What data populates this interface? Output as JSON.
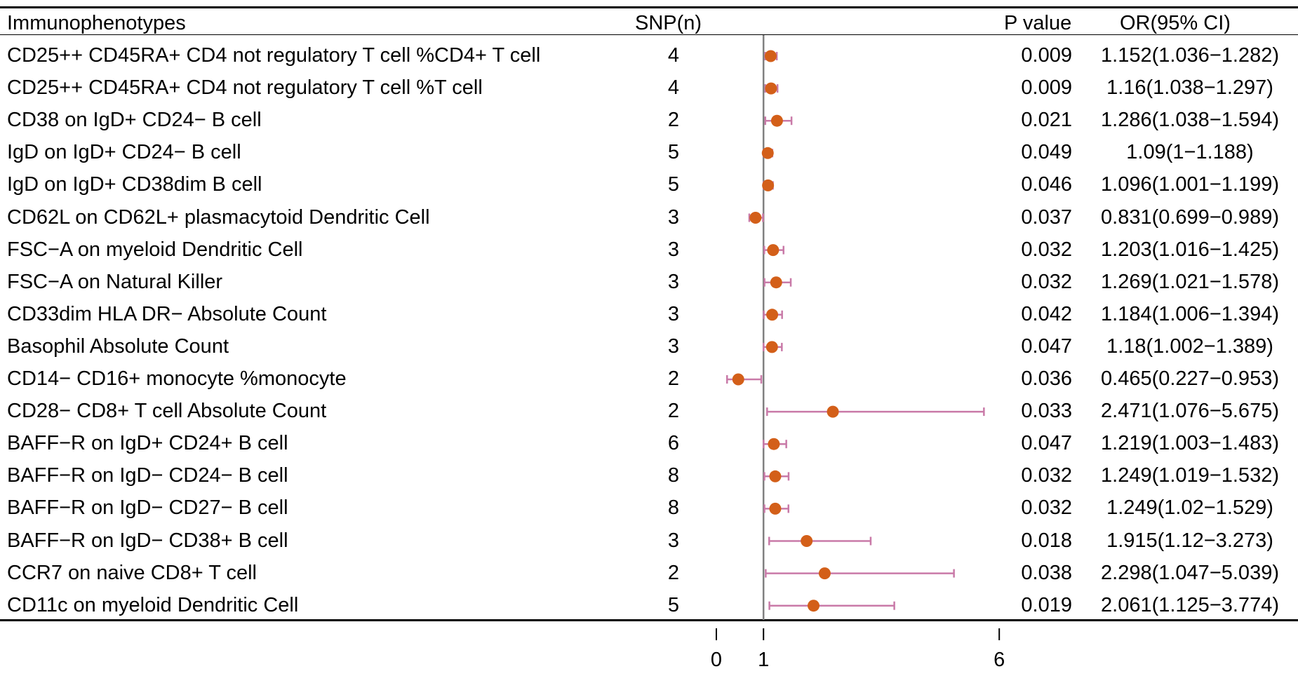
{
  "columns": {
    "name": "Immunophenotypes",
    "snp": "SNP(n)",
    "p": "P value",
    "or": "OR(95% CI)"
  },
  "axis": {
    "ticks": [
      0,
      1,
      6
    ],
    "tick_labels": [
      "0",
      "1",
      "6"
    ],
    "reference_line": 1
  },
  "colors": {
    "point": "#d35f19",
    "ci": "#c97aa8",
    "reference": "#808080"
  },
  "rows": [
    {
      "name": "CD25++ CD45RA+ CD4 not regulatory T cell %CD4+ T cell",
      "snp": "4",
      "p": "0.009",
      "or_text": "1.152(1.036−1.282)"
    },
    {
      "name": "CD25++ CD45RA+ CD4 not regulatory T cell %T cell",
      "snp": "4",
      "p": "0.009",
      "or_text": "1.16(1.038−1.297)"
    },
    {
      "name": "CD38 on IgD+ CD24− B cell",
      "snp": "2",
      "p": "0.021",
      "or_text": "1.286(1.038−1.594)"
    },
    {
      "name": "IgD on IgD+ CD24− B cell",
      "snp": "5",
      "p": "0.049",
      "or_text": "1.09(1−1.188)"
    },
    {
      "name": "IgD on IgD+ CD38dim B cell",
      "snp": "5",
      "p": "0.046",
      "or_text": "1.096(1.001−1.199)"
    },
    {
      "name": "CD62L on CD62L+ plasmacytoid Dendritic Cell",
      "snp": "3",
      "p": "0.037",
      "or_text": "0.831(0.699−0.989)"
    },
    {
      "name": "FSC−A on myeloid Dendritic Cell",
      "snp": "3",
      "p": "0.032",
      "or_text": "1.203(1.016−1.425)"
    },
    {
      "name": "FSC−A on Natural Killer",
      "snp": "3",
      "p": "0.032",
      "or_text": "1.269(1.021−1.578)"
    },
    {
      "name": "CD33dim HLA DR− Absolute Count",
      "snp": "3",
      "p": "0.042",
      "or_text": "1.184(1.006−1.394)"
    },
    {
      "name": "Basophil Absolute Count",
      "snp": "3",
      "p": "0.047",
      "or_text": "1.18(1.002−1.389)"
    },
    {
      "name": "CD14− CD16+ monocyte %monocyte",
      "snp": "2",
      "p": "0.036",
      "or_text": "0.465(0.227−0.953)"
    },
    {
      "name": "CD28− CD8+ T cell Absolute Count",
      "snp": "2",
      "p": "0.033",
      "or_text": "2.471(1.076−5.675)"
    },
    {
      "name": "BAFF−R on IgD+ CD24+ B cell",
      "snp": "6",
      "p": "0.047",
      "or_text": "1.219(1.003−1.483)"
    },
    {
      "name": "BAFF−R on IgD− CD24− B cell",
      "snp": "8",
      "p": "0.032",
      "or_text": "1.249(1.019−1.532)"
    },
    {
      "name": "BAFF−R on IgD− CD27− B cell",
      "snp": "8",
      "p": "0.032",
      "or_text": "1.249(1.02−1.529)"
    },
    {
      "name": "BAFF−R on IgD− CD38+ B cell",
      "snp": "3",
      "p": "0.018",
      "or_text": "1.915(1.12−3.273)"
    },
    {
      "name": "CCR7 on naive CD8+ T cell",
      "snp": "2",
      "p": "0.038",
      "or_text": "2.298(1.047−5.039)"
    },
    {
      "name": "CD11c on myeloid Dendritic Cell",
      "snp": "5",
      "p": "0.019",
      "or_text": "2.061(1.125−3.774)"
    }
  ],
  "chart_data": {
    "type": "forest",
    "title": "",
    "xlabel": "",
    "ylabel": "",
    "xlim": [
      0,
      6
    ],
    "reference_line": 1,
    "categories": [
      "CD25++ CD45RA+ CD4 not regulatory T cell %CD4+ T cell",
      "CD25++ CD45RA+ CD4 not regulatory T cell %T cell",
      "CD38 on IgD+ CD24− B cell",
      "IgD on IgD+ CD24− B cell",
      "IgD on IgD+ CD38dim B cell",
      "CD62L on CD62L+ plasmacytoid Dendritic Cell",
      "FSC−A on myeloid Dendritic Cell",
      "FSC−A on Natural Killer",
      "CD33dim HLA DR− Absolute Count",
      "Basophil Absolute Count",
      "CD14− CD16+ monocyte %monocyte",
      "CD28− CD8+ T cell Absolute Count",
      "BAFF−R on IgD+ CD24+ B cell",
      "BAFF−R on IgD− CD24− B cell",
      "BAFF−R on IgD− CD27− B cell",
      "BAFF−R on IgD− CD38+ B cell",
      "CCR7 on naive CD8+ T cell",
      "CD11c on myeloid Dendritic Cell"
    ],
    "or": [
      1.152,
      1.16,
      1.286,
      1.09,
      1.096,
      0.831,
      1.203,
      1.269,
      1.184,
      1.18,
      0.465,
      2.471,
      1.219,
      1.249,
      1.249,
      1.915,
      2.298,
      2.061
    ],
    "ci_low": [
      1.036,
      1.038,
      1.038,
      1,
      1.001,
      0.699,
      1.016,
      1.021,
      1.006,
      1.002,
      0.227,
      1.076,
      1.003,
      1.019,
      1.02,
      1.12,
      1.047,
      1.125
    ],
    "ci_high": [
      1.282,
      1.297,
      1.594,
      1.188,
      1.199,
      0.989,
      1.425,
      1.578,
      1.394,
      1.389,
      0.953,
      5.675,
      1.483,
      1.532,
      1.529,
      3.273,
      5.039,
      3.774
    ],
    "snp": [
      4,
      4,
      2,
      5,
      5,
      3,
      3,
      3,
      3,
      3,
      2,
      2,
      6,
      8,
      8,
      3,
      2,
      5
    ],
    "p_value": [
      0.009,
      0.009,
      0.021,
      0.049,
      0.046,
      0.037,
      0.032,
      0.032,
      0.042,
      0.047,
      0.036,
      0.033,
      0.047,
      0.032,
      0.032,
      0.018,
      0.038,
      0.019
    ]
  }
}
